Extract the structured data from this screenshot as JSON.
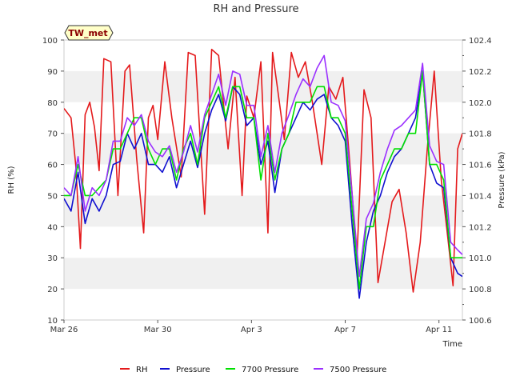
{
  "chart_data": {
    "type": "line",
    "title": "RH and Pressure",
    "badge": "TW_met",
    "xlabel": "Time",
    "ylabel": "RH (%)",
    "y2label": "Pressure (kPa)",
    "x_start": "Mar 26",
    "x_end": "Apr 12",
    "xlim": [
      0,
      17
    ],
    "ylim": [
      10,
      100
    ],
    "y2lim": [
      100.6,
      102.4
    ],
    "x_ticks": [
      {
        "x": 0,
        "label": "Mar 26"
      },
      {
        "x": 4,
        "label": "Mar 30"
      },
      {
        "x": 8,
        "label": "Apr 3"
      },
      {
        "x": 12,
        "label": "Apr 7"
      },
      {
        "x": 16,
        "label": "Apr 11"
      }
    ],
    "y_ticks": [
      {
        "v": 10,
        "label": "10"
      },
      {
        "v": 20,
        "label": "20"
      },
      {
        "v": 30,
        "label": "30"
      },
      {
        "v": 40,
        "label": "40"
      },
      {
        "v": 50,
        "label": "50"
      },
      {
        "v": 60,
        "label": "60"
      },
      {
        "v": 70,
        "label": "70"
      },
      {
        "v": 80,
        "label": "80"
      },
      {
        "v": 90,
        "label": "90"
      },
      {
        "v": 100,
        "label": "100"
      }
    ],
    "y2_ticks": [
      {
        "v": 100.6,
        "label": "100.6"
      },
      {
        "v": 100.8,
        "label": "100.8"
      },
      {
        "v": 101.0,
        "label": "101.0"
      },
      {
        "v": 101.2,
        "label": "101.2"
      },
      {
        "v": 101.4,
        "label": "101.4"
      },
      {
        "v": 101.6,
        "label": "101.6"
      },
      {
        "v": 101.8,
        "label": "101.8"
      },
      {
        "v": 102.0,
        "label": "102.0"
      },
      {
        "v": 102.2,
        "label": "102.2"
      },
      {
        "v": 102.4,
        "label": "102.4"
      }
    ],
    "grid": "horizontal bands",
    "legend_position": "bottom",
    "series": [
      {
        "name": "RH",
        "color": "#e41a1c",
        "axis": "left",
        "x": [
          0,
          0.3,
          0.5,
          0.7,
          0.9,
          1.1,
          1.3,
          1.5,
          1.7,
          2.0,
          2.3,
          2.6,
          2.8,
          3.1,
          3.4,
          3.6,
          3.8,
          4.0,
          4.3,
          4.6,
          5.0,
          5.3,
          5.6,
          6.0,
          6.3,
          6.6,
          7.0,
          7.3,
          7.6,
          7.8,
          8.1,
          8.4,
          8.7,
          8.9,
          9.1,
          9.4,
          9.7,
          10.0,
          10.3,
          10.6,
          11.0,
          11.3,
          11.6,
          11.9,
          12.2,
          12.5,
          12.8,
          13.1,
          13.4,
          13.7,
          14.0,
          14.3,
          14.6,
          14.9,
          15.2,
          15.5,
          15.8,
          16.1,
          16.4,
          16.6,
          16.8,
          17.0
        ],
        "values": [
          78,
          75,
          60,
          33,
          76,
          80,
          72,
          58,
          94,
          93,
          50,
          90,
          92,
          62,
          38,
          75,
          79,
          68,
          93,
          75,
          56,
          96,
          95,
          44,
          97,
          95,
          65,
          88,
          50,
          82,
          75,
          93,
          38,
          96,
          85,
          68,
          96,
          88,
          93,
          80,
          60,
          85,
          81,
          88,
          60,
          30,
          84,
          75,
          22,
          35,
          48,
          52,
          38,
          19,
          35,
          65,
          90,
          55,
          35,
          21,
          65,
          70
        ]
      },
      {
        "name": "Pressure",
        "color": "#1010d0",
        "axis": "right",
        "x": [
          0,
          0.3,
          0.6,
          0.9,
          1.2,
          1.5,
          1.8,
          2.1,
          2.4,
          2.7,
          3.0,
          3.3,
          3.6,
          3.9,
          4.2,
          4.5,
          4.8,
          5.1,
          5.4,
          5.7,
          6.0,
          6.3,
          6.6,
          6.9,
          7.2,
          7.5,
          7.8,
          8.1,
          8.4,
          8.7,
          9.0,
          9.3,
          9.6,
          9.9,
          10.2,
          10.5,
          10.8,
          11.1,
          11.4,
          11.7,
          12.0,
          12.3,
          12.6,
          12.9,
          13.2,
          13.5,
          13.8,
          14.1,
          14.4,
          14.7,
          15.0,
          15.3,
          15.6,
          15.9,
          16.2,
          16.5,
          16.8,
          17.0
        ],
        "values": [
          101.38,
          101.3,
          101.55,
          101.22,
          101.38,
          101.3,
          101.4,
          101.6,
          101.62,
          101.8,
          101.7,
          101.8,
          101.6,
          101.6,
          101.55,
          101.65,
          101.45,
          101.6,
          101.75,
          101.58,
          101.8,
          101.95,
          102.05,
          101.88,
          102.1,
          102.05,
          101.85,
          101.9,
          101.6,
          101.75,
          101.42,
          101.7,
          101.8,
          101.9,
          102.0,
          101.95,
          102.02,
          102.05,
          101.9,
          101.85,
          101.75,
          101.2,
          100.74,
          101.1,
          101.3,
          101.4,
          101.55,
          101.65,
          101.7,
          101.8,
          101.9,
          102.2,
          101.6,
          101.48,
          101.45,
          101.0,
          100.9,
          100.88
        ]
      },
      {
        "name": "7700 Pressure",
        "color": "#00e000",
        "axis": "right",
        "x": [
          0,
          0.3,
          0.6,
          0.9,
          1.2,
          1.5,
          1.8,
          2.1,
          2.4,
          2.7,
          3.0,
          3.3,
          3.6,
          3.9,
          4.2,
          4.5,
          4.8,
          5.1,
          5.4,
          5.7,
          6.0,
          6.3,
          6.6,
          6.9,
          7.2,
          7.5,
          7.8,
          8.1,
          8.4,
          8.7,
          9.0,
          9.3,
          9.6,
          9.9,
          10.2,
          10.5,
          10.8,
          11.1,
          11.4,
          11.7,
          12.0,
          12.3,
          12.6,
          12.9,
          13.2,
          13.5,
          13.8,
          14.1,
          14.4,
          14.7,
          15.0,
          15.3,
          15.6,
          15.9,
          16.2,
          16.5,
          16.8,
          17.0
        ],
        "values": [
          101.4,
          101.4,
          101.6,
          101.4,
          101.4,
          101.45,
          101.5,
          101.7,
          101.7,
          101.8,
          101.9,
          101.9,
          101.7,
          101.6,
          101.7,
          101.7,
          101.5,
          101.7,
          101.8,
          101.6,
          101.9,
          102.0,
          102.1,
          101.9,
          102.1,
          102.1,
          101.9,
          101.9,
          101.5,
          101.8,
          101.5,
          101.7,
          101.8,
          102.0,
          102.0,
          102.0,
          102.1,
          102.1,
          101.9,
          101.9,
          101.8,
          101.3,
          100.8,
          101.2,
          101.2,
          101.5,
          101.6,
          101.7,
          101.7,
          101.8,
          101.8,
          102.2,
          101.6,
          101.6,
          101.5,
          101.0,
          101.0,
          101.0
        ]
      },
      {
        "name": "7500 Pressure",
        "color": "#9b30ff",
        "axis": "right",
        "x": [
          0,
          0.3,
          0.6,
          0.9,
          1.2,
          1.5,
          1.8,
          2.1,
          2.4,
          2.7,
          3.0,
          3.3,
          3.6,
          3.9,
          4.2,
          4.5,
          4.8,
          5.1,
          5.4,
          5.7,
          6.0,
          6.3,
          6.6,
          6.9,
          7.2,
          7.5,
          7.8,
          8.1,
          8.4,
          8.7,
          9.0,
          9.3,
          9.6,
          9.9,
          10.2,
          10.5,
          10.8,
          11.1,
          11.4,
          11.7,
          12.0,
          12.3,
          12.6,
          12.9,
          13.2,
          13.5,
          13.8,
          14.1,
          14.4,
          14.7,
          15.0,
          15.3,
          15.6,
          15.9,
          16.2,
          16.5,
          16.8,
          17.0
        ],
        "values": [
          101.45,
          101.4,
          101.65,
          101.3,
          101.45,
          101.4,
          101.5,
          101.75,
          101.75,
          101.9,
          101.85,
          101.92,
          101.75,
          101.68,
          101.65,
          101.72,
          101.55,
          101.68,
          101.85,
          101.68,
          101.92,
          102.05,
          102.18,
          101.98,
          102.2,
          102.18,
          101.98,
          101.98,
          101.65,
          101.85,
          101.55,
          101.8,
          101.92,
          102.05,
          102.15,
          102.1,
          102.22,
          102.3,
          102.0,
          101.98,
          101.88,
          101.4,
          100.88,
          101.25,
          101.35,
          101.55,
          101.7,
          101.82,
          101.85,
          101.9,
          101.95,
          102.25,
          101.72,
          101.62,
          101.6,
          101.1,
          101.05,
          101.02
        ]
      }
    ]
  }
}
